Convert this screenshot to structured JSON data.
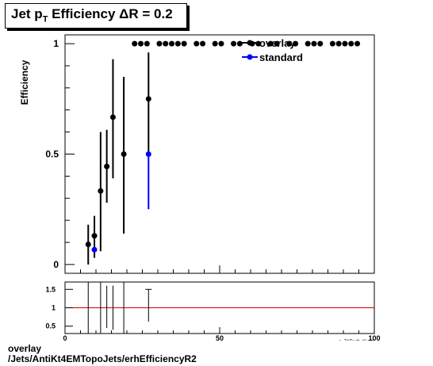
{
  "title": {
    "main": "Jet p",
    "sub": "T",
    "rest": " Efficiency  ΔR = 0.2"
  },
  "footer": {
    "line1": "overlay",
    "line2": "/Jets/AntiKt4EMTopoJets/erhEfficiencyR2"
  },
  "chart_data": [
    {
      "type": "scatter",
      "ylabel": "Efficiency",
      "xlim": [
        0,
        100
      ],
      "ylim": [
        -0.04,
        1.04
      ],
      "yticks": [
        0,
        0.5,
        1
      ],
      "ytick_labels": [
        "0",
        "0.5",
        "1"
      ],
      "legend_position": "top-right",
      "series": [
        {
          "name": "overlay",
          "color": "#000000",
          "points": [
            {
              "x": 7.5,
              "y": 0.091,
              "lo": 0.0,
              "hi": 0.18
            },
            {
              "x": 9.5,
              "y": 0.13,
              "lo": 0.03,
              "hi": 0.22
            },
            {
              "x": 11.5,
              "y": 0.333,
              "lo": 0.06,
              "hi": 0.6
            },
            {
              "x": 13.5,
              "y": 0.444,
              "lo": 0.28,
              "hi": 0.61
            },
            {
              "x": 15.5,
              "y": 0.667,
              "lo": 0.39,
              "hi": 0.93
            },
            {
              "x": 19,
              "y": 0.5,
              "lo": 0.14,
              "hi": 0.85
            },
            {
              "x": 27,
              "y": 0.75,
              "lo": 0.5,
              "hi": 0.96
            },
            {
              "x": 22.5,
              "y": 1
            },
            {
              "x": 24.5,
              "y": 1
            },
            {
              "x": 26.5,
              "y": 1
            },
            {
              "x": 30.5,
              "y": 1
            },
            {
              "x": 32.5,
              "y": 1
            },
            {
              "x": 34.5,
              "y": 1
            },
            {
              "x": 36.5,
              "y": 1
            },
            {
              "x": 38.5,
              "y": 1
            },
            {
              "x": 42.5,
              "y": 1
            },
            {
              "x": 44.5,
              "y": 1
            },
            {
              "x": 48.5,
              "y": 1
            },
            {
              "x": 50.5,
              "y": 1
            },
            {
              "x": 54.5,
              "y": 1
            },
            {
              "x": 56.5,
              "y": 1
            },
            {
              "x": 60.5,
              "y": 1
            },
            {
              "x": 62.5,
              "y": 1
            },
            {
              "x": 66.5,
              "y": 1
            },
            {
              "x": 68.5,
              "y": 1
            },
            {
              "x": 72.5,
              "y": 1
            },
            {
              "x": 74.5,
              "y": 1
            },
            {
              "x": 78.5,
              "y": 1
            },
            {
              "x": 80.5,
              "y": 1
            },
            {
              "x": 82.5,
              "y": 1
            },
            {
              "x": 86.5,
              "y": 1
            },
            {
              "x": 88.5,
              "y": 1
            },
            {
              "x": 90.5,
              "y": 1
            },
            {
              "x": 92.5,
              "y": 1
            },
            {
              "x": 94.5,
              "y": 1
            }
          ]
        },
        {
          "name": "standard",
          "color": "#0000ff",
          "points": [
            {
              "x": 9.5,
              "y": 0.067,
              "lo": 0.0,
              "hi": 0.0
            },
            {
              "x": 27,
              "y": 0.5,
              "lo": 0.25,
              "hi": 0.5
            }
          ]
        }
      ]
    },
    {
      "type": "scatter",
      "xlabel": "p_T^Truth (GeV)",
      "xlim": [
        0,
        100
      ],
      "ylim": [
        0.3,
        1.7
      ],
      "xticks": [
        0,
        50,
        100
      ],
      "xtick_labels": [
        "0",
        "50",
        "100"
      ],
      "yticks": [
        0.5,
        1,
        1.5
      ],
      "ytick_labels": [
        "0.5",
        "1",
        "1.5"
      ],
      "reference_line": {
        "y": 1,
        "color": "#cc0000"
      },
      "points": [
        {
          "x": 7.5,
          "lo": 0.3,
          "hi": 1.7
        },
        {
          "x": 11.5,
          "lo": 0.3,
          "hi": 1.7
        },
        {
          "x": 13.5,
          "lo": 0.45,
          "hi": 1.6
        },
        {
          "x": 15.5,
          "lo": 0.4,
          "hi": 1.6
        },
        {
          "x": 19,
          "lo": 0.3,
          "hi": 1.7
        },
        {
          "x": 27,
          "y": 1.5,
          "lo": 0.62,
          "hi": 1.5
        }
      ]
    }
  ]
}
